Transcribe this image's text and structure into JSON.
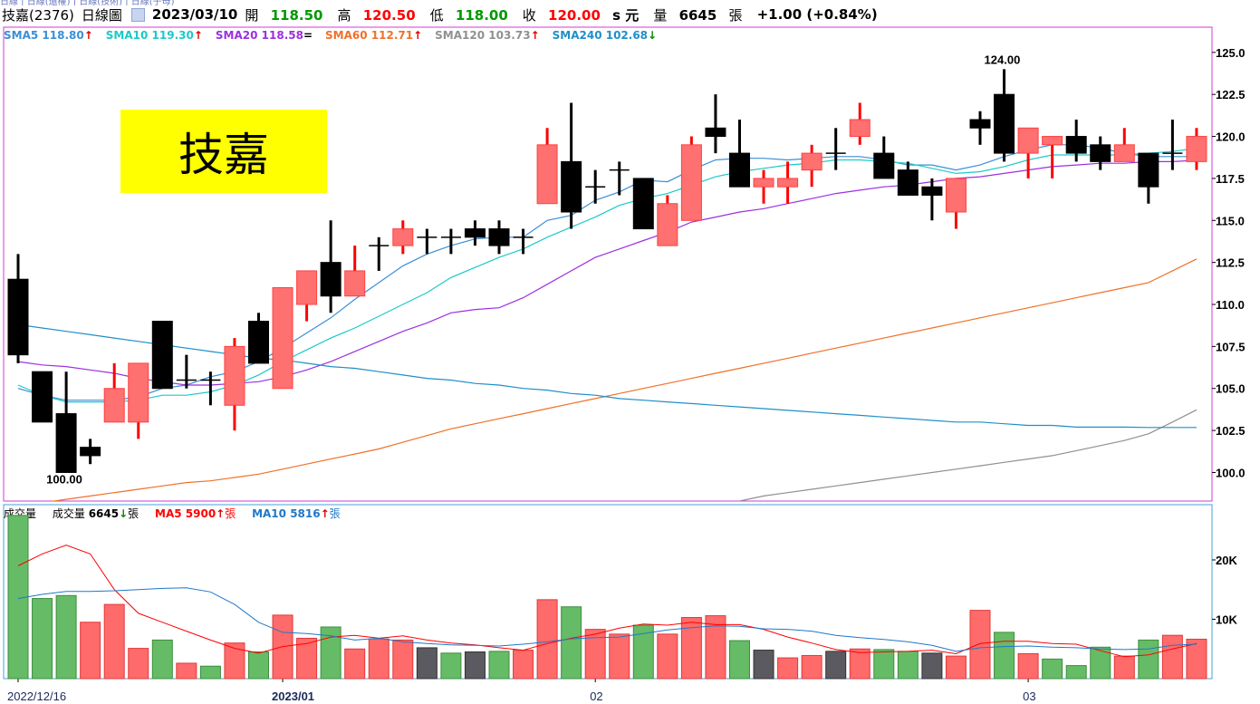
{
  "top_strip": "日線 | 日線(還權) | 日線(技術) | 日線(子母)",
  "header": {
    "stock": "技嘉(2376)",
    "period": "日線圖",
    "date": "2023/03/10",
    "open_label": "開",
    "open": "118.50",
    "high_label": "高",
    "high": "120.50",
    "low_label": "低",
    "low": "118.00",
    "close_label": "收",
    "close": "120.00",
    "close_suffix": "s 元",
    "volume_label": "量",
    "volume": "6645",
    "volume_unit": "張",
    "change": "+1.00 (+0.84%)"
  },
  "title_box": "技嘉",
  "legend": [
    {
      "label": "SMA5",
      "value": "118.80",
      "dir": "up",
      "color": "#3a8fd6"
    },
    {
      "label": "SMA10",
      "value": "119.30",
      "dir": "up",
      "color": "#1cc9c9"
    },
    {
      "label": "SMA20",
      "value": "118.58",
      "dir": "eq",
      "color": "#9b30e0"
    },
    {
      "label": "SMA60",
      "value": "112.71",
      "dir": "up",
      "color": "#f0702a"
    },
    {
      "label": "SMA120",
      "value": "103.73",
      "dir": "up",
      "color": "#909090"
    },
    {
      "label": "SMA240",
      "value": "102.68",
      "dir": "down",
      "color": "#1f8fc8"
    }
  ],
  "volume_legend": {
    "title": "成交量",
    "vol_label": "成交量",
    "vol_value": "6645",
    "vol_dir": "down",
    "vol_unit": "張",
    "ma5_label": "MA5",
    "ma5_value": "5900",
    "ma5_dir": "up",
    "ma5_unit": "張",
    "ma10_label": "MA10",
    "ma10_value": "5816",
    "ma10_dir": "up",
    "ma10_unit": "張"
  },
  "chart_data": [
    {
      "type": "candlestick",
      "price_ticks": [
        "125.0",
        "122.5",
        "120.0",
        "117.5",
        "115.0",
        "112.5",
        "110.0",
        "107.5",
        "105.0",
        "102.5",
        "100.0"
      ],
      "ylim": [
        98.3,
        126.5
      ],
      "annotations": [
        {
          "text": "124.00",
          "bar": 41,
          "value": 124.0
        },
        {
          "text": "100.00",
          "bar": 2,
          "value": 100.0
        }
      ],
      "x_labels": [
        {
          "text": "2022/12/16",
          "bar": 0
        },
        {
          "text": "2023/01",
          "bar": 11
        },
        {
          "text": "02",
          "bar": 24
        },
        {
          "text": "03",
          "bar": 42
        }
      ],
      "candles": [
        [
          111.5,
          107.0,
          113.0,
          106.5
        ],
        [
          106.0,
          103.0,
          106.0,
          103.0
        ],
        [
          103.5,
          100.0,
          106.0,
          100.0
        ],
        [
          101.5,
          101.0,
          102.0,
          100.5
        ],
        [
          103.0,
          105.0,
          106.5,
          103.0
        ],
        [
          103.0,
          106.5,
          106.5,
          102.0
        ],
        [
          109.0,
          105.0,
          109.0,
          105.0
        ],
        [
          105.5,
          105.5,
          107.0,
          105.0
        ],
        [
          105.5,
          105.5,
          106.0,
          104.0
        ],
        [
          104.0,
          107.5,
          108.0,
          102.5
        ],
        [
          109.0,
          106.5,
          109.5,
          106.5
        ],
        [
          105.0,
          111.0,
          111.0,
          105.0
        ],
        [
          110.0,
          112.0,
          112.0,
          109.0
        ],
        [
          112.5,
          110.5,
          115.0,
          109.5
        ],
        [
          110.5,
          112.0,
          113.5,
          110.5
        ],
        [
          113.5,
          113.5,
          114.0,
          112.0
        ],
        [
          113.5,
          114.5,
          115.0,
          113.0
        ],
        [
          114.0,
          114.0,
          114.5,
          113.0
        ],
        [
          114.0,
          114.0,
          114.5,
          113.0
        ],
        [
          114.5,
          114.0,
          115.0,
          113.5
        ],
        [
          114.5,
          113.5,
          115.0,
          113.0
        ],
        [
          114.0,
          114.0,
          114.5,
          113.0
        ],
        [
          116.0,
          119.5,
          120.5,
          116.0
        ],
        [
          118.5,
          115.5,
          122.0,
          114.5
        ],
        [
          117.0,
          117.0,
          118.0,
          116.0
        ],
        [
          118.0,
          118.0,
          118.5,
          116.5
        ],
        [
          117.5,
          114.5,
          117.5,
          114.5
        ],
        [
          113.5,
          116.0,
          116.5,
          113.5
        ],
        [
          115.0,
          119.5,
          120.0,
          115.0
        ],
        [
          120.5,
          120.0,
          122.5,
          119.0
        ],
        [
          119.0,
          117.0,
          121.0,
          117.0
        ],
        [
          117.0,
          117.5,
          118.0,
          116.0
        ],
        [
          117.0,
          117.5,
          118.5,
          116.0
        ],
        [
          118.0,
          119.0,
          119.5,
          117.0
        ],
        [
          119.0,
          119.0,
          120.5,
          118.0
        ],
        [
          120.0,
          121.0,
          122.0,
          119.5
        ],
        [
          119.0,
          117.5,
          120.0,
          117.5
        ],
        [
          118.0,
          116.5,
          118.5,
          116.5
        ],
        [
          117.0,
          116.5,
          117.5,
          115.0
        ],
        [
          115.5,
          117.5,
          117.5,
          114.5
        ],
        [
          121.0,
          120.5,
          121.5,
          119.5
        ],
        [
          122.5,
          119.0,
          124.0,
          118.5
        ],
        [
          119.0,
          120.5,
          120.5,
          117.5
        ],
        [
          119.5,
          120.0,
          120.0,
          117.5
        ],
        [
          120.0,
          119.0,
          121.0,
          118.5
        ],
        [
          119.5,
          118.5,
          120.0,
          118.0
        ],
        [
          118.5,
          119.5,
          120.5,
          118.5
        ],
        [
          119.0,
          117.0,
          119.0,
          116.0
        ],
        [
          119.0,
          119.0,
          121.0,
          118.0
        ],
        [
          118.5,
          120.0,
          120.5,
          118.0
        ]
      ],
      "series": [
        {
          "name": "SMA5",
          "color": "#3a8fd6",
          "values": [
            105.0,
            104.6,
            104.3,
            104.3,
            104.3,
            104.5,
            105.0,
            105.2,
            105.7,
            106.0,
            106.6,
            107.4,
            108.3,
            109.2,
            110.3,
            111.3,
            112.3,
            113.0,
            113.5,
            113.9,
            114.0,
            114.0,
            115.0,
            115.3,
            116.2,
            116.7,
            117.4,
            117.3,
            118.0,
            118.6,
            118.7,
            118.7,
            118.6,
            118.7,
            118.8,
            118.8,
            118.6,
            118.3,
            118.3,
            118.0,
            118.3,
            118.8,
            119.2,
            119.5,
            119.5,
            119.3,
            119.0,
            118.8,
            118.8,
            118.8
          ]
        },
        {
          "name": "SMA10",
          "color": "#1cc9c9",
          "values": [
            105.2,
            104.6,
            104.2,
            104.2,
            104.2,
            104.3,
            104.6,
            104.6,
            104.8,
            105.2,
            105.8,
            106.6,
            107.3,
            108.0,
            108.6,
            109.3,
            110.0,
            110.7,
            111.6,
            112.2,
            112.8,
            113.3,
            114.0,
            114.6,
            115.2,
            115.9,
            116.3,
            116.6,
            117.1,
            117.6,
            117.9,
            118.1,
            118.3,
            118.4,
            118.6,
            118.6,
            118.5,
            118.4,
            118.1,
            117.8,
            117.9,
            118.2,
            118.6,
            118.9,
            118.9,
            118.9,
            118.9,
            119.0,
            119.1,
            119.3
          ]
        },
        {
          "name": "SMA20",
          "color": "#9b30e0",
          "values": [
            106.6,
            106.4,
            106.3,
            106.1,
            105.9,
            105.6,
            105.4,
            105.2,
            105.2,
            105.3,
            105.4,
            105.7,
            106.1,
            106.6,
            107.2,
            107.8,
            108.4,
            108.9,
            109.5,
            109.7,
            109.8,
            110.4,
            111.2,
            112.0,
            112.8,
            113.3,
            113.8,
            114.3,
            114.9,
            115.2,
            115.5,
            115.7,
            116.0,
            116.3,
            116.6,
            116.8,
            117.0,
            117.1,
            117.3,
            117.5,
            117.6,
            117.8,
            118.0,
            118.2,
            118.3,
            118.4,
            118.4,
            118.5,
            118.5,
            118.58
          ]
        },
        {
          "name": "SMA60",
          "color": "#f0702a",
          "values": [
            98.0,
            98.2,
            98.4,
            98.6,
            98.8,
            99.0,
            99.2,
            99.4,
            99.5,
            99.7,
            99.9,
            100.2,
            100.5,
            100.8,
            101.1,
            101.4,
            101.8,
            102.2,
            102.6,
            102.9,
            103.2,
            103.5,
            103.8,
            104.1,
            104.4,
            104.7,
            105.0,
            105.3,
            105.6,
            105.9,
            106.2,
            106.5,
            106.8,
            107.1,
            107.4,
            107.7,
            108.0,
            108.3,
            108.6,
            108.9,
            109.2,
            109.5,
            109.8,
            110.1,
            110.4,
            110.7,
            111.0,
            111.3,
            112.0,
            112.71
          ]
        },
        {
          "name": "SMA120",
          "color": "#909090",
          "values": [
            null,
            null,
            null,
            null,
            null,
            null,
            null,
            null,
            null,
            null,
            null,
            null,
            null,
            null,
            null,
            null,
            null,
            null,
            null,
            null,
            null,
            null,
            null,
            null,
            null,
            null,
            null,
            null,
            null,
            null,
            98.3,
            98.6,
            98.8,
            99.0,
            99.2,
            99.4,
            99.6,
            99.8,
            100.0,
            100.2,
            100.4,
            100.6,
            100.8,
            101.0,
            101.3,
            101.6,
            101.9,
            102.3,
            103.0,
            103.73
          ]
        },
        {
          "name": "SMA240",
          "color": "#1f8fc8",
          "values": [
            108.8,
            108.6,
            108.4,
            108.2,
            108.0,
            107.8,
            107.6,
            107.4,
            107.2,
            107.0,
            106.8,
            106.7,
            106.5,
            106.3,
            106.2,
            106.0,
            105.8,
            105.6,
            105.5,
            105.3,
            105.2,
            105.0,
            104.9,
            104.7,
            104.6,
            104.4,
            104.3,
            104.2,
            104.1,
            104.0,
            103.9,
            103.8,
            103.7,
            103.6,
            103.5,
            103.4,
            103.3,
            103.2,
            103.1,
            103.0,
            103.0,
            102.9,
            102.8,
            102.8,
            102.7,
            102.7,
            102.7,
            102.68,
            102.68,
            102.68
          ]
        }
      ]
    },
    {
      "type": "bar",
      "title": "成交量",
      "y_ticks": [
        {
          "text": "20K",
          "value": 20000
        },
        {
          "text": "10K",
          "value": 10000
        }
      ],
      "ylim": [
        0,
        29000
      ],
      "volumes": [
        27500,
        13500,
        14000,
        9500,
        12500,
        5100,
        6500,
        2600,
        2100,
        6000,
        4500,
        10700,
        6800,
        8700,
        5000,
        6700,
        6500,
        5200,
        4300,
        4500,
        4600,
        4800,
        13300,
        12100,
        8300,
        7500,
        9000,
        7500,
        10300,
        10600,
        6400,
        4800,
        3500,
        3900,
        4600,
        5000,
        4900,
        4600,
        4300,
        3800,
        11500,
        7800,
        4200,
        3300,
        2200,
        5300,
        3800,
        6500,
        7300,
        6645
      ],
      "bar_colors": [
        "green",
        "green",
        "green",
        "red",
        "red",
        "red",
        "green",
        "red",
        "green",
        "red",
        "green",
        "red",
        "red",
        "green",
        "red",
        "red",
        "red",
        "gray",
        "green",
        "gray",
        "green",
        "red",
        "red",
        "green",
        "red",
        "red",
        "green",
        "red",
        "red",
        "red",
        "green",
        "gray",
        "red",
        "red",
        "gray",
        "red",
        "green",
        "green",
        "gray",
        "red",
        "red",
        "green",
        "red",
        "green",
        "green",
        "green",
        "red",
        "green",
        "red",
        "red"
      ],
      "series": [
        {
          "name": "MA5",
          "color": "#ff0000",
          "values": [
            19000,
            21000,
            22500,
            21000,
            15000,
            11000,
            9500,
            8000,
            6500,
            5100,
            4300,
            5400,
            5900,
            7000,
            7300,
            6800,
            7200,
            6500,
            6000,
            5700,
            5200,
            4800,
            5900,
            6800,
            7500,
            8500,
            9200,
            9000,
            9500,
            9100,
            9100,
            8300,
            7000,
            6000,
            4900,
            4400,
            4500,
            4600,
            4800,
            4200,
            5900,
            6300,
            6300,
            5900,
            5800,
            4700,
            3700,
            4000,
            5000,
            5900
          ]
        },
        {
          "name": "MA10",
          "color": "#1f78c8",
          "values": [
            13500,
            14200,
            14700,
            14700,
            14800,
            15000,
            15200,
            15300,
            14600,
            12500,
            9500,
            7800,
            7600,
            7200,
            6500,
            6800,
            6200,
            5900,
            5700,
            5600,
            5500,
            5800,
            6200,
            6700,
            6900,
            7000,
            7600,
            8200,
            8600,
            8900,
            8800,
            8400,
            8300,
            8000,
            7300,
            6900,
            6600,
            6200,
            5600,
            4600,
            5200,
            5400,
            5500,
            5300,
            5200,
            5000,
            4900,
            5000,
            5600,
            5816
          ]
        }
      ]
    }
  ]
}
